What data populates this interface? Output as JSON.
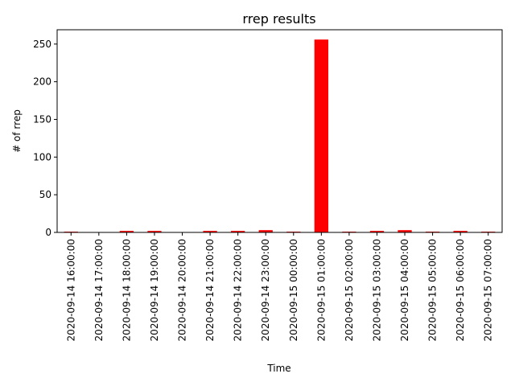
{
  "chart_data": {
    "type": "bar",
    "title": "rrep results",
    "xlabel": "Time",
    "ylabel": "# of rrep",
    "categories": [
      "2020-09-14 16:00:00",
      "2020-09-14 17:00:00",
      "2020-09-14 18:00:00",
      "2020-09-14 19:00:00",
      "2020-09-14 20:00:00",
      "2020-09-14 21:00:00",
      "2020-09-14 22:00:00",
      "2020-09-14 23:00:00",
      "2020-09-15 00:00:00",
      "2020-09-15 01:00:00",
      "2020-09-15 02:00:00",
      "2020-09-15 03:00:00",
      "2020-09-15 04:00:00",
      "2020-09-15 05:00:00",
      "2020-09-15 06:00:00",
      "2020-09-15 07:00:00"
    ],
    "values": [
      1,
      0,
      2,
      2,
      0,
      2,
      2,
      3,
      1,
      256,
      1,
      2,
      3,
      1,
      2,
      1
    ],
    "ylim": [
      0,
      269
    ],
    "yticks": [
      0,
      50,
      100,
      150,
      200,
      250
    ],
    "bar_color": "#ff0000",
    "grid": false,
    "legend": false
  }
}
